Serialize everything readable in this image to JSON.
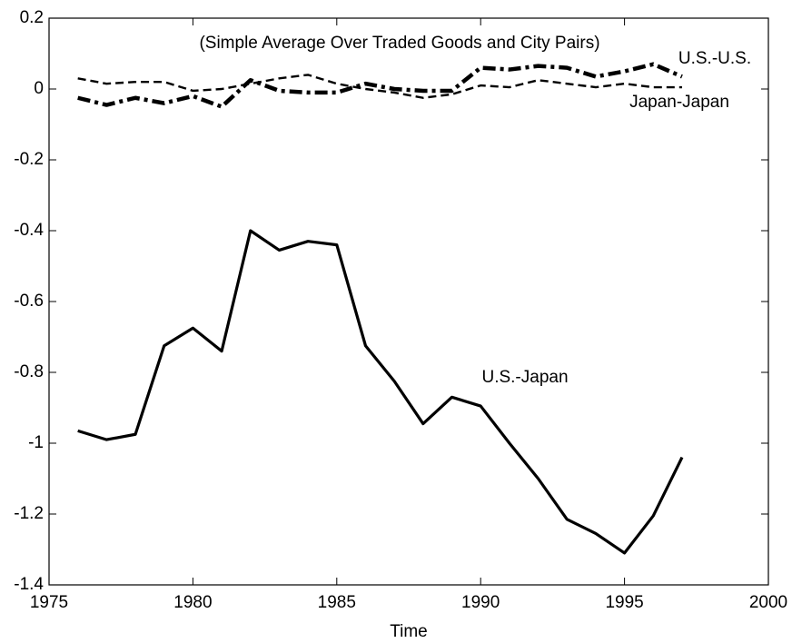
{
  "chart_data": {
    "type": "line",
    "annotation": "(Simple Average Over Traded Goods and City Pairs)",
    "x_label": "Time",
    "x": [
      1976,
      1977,
      1978,
      1979,
      1980,
      1981,
      1982,
      1983,
      1984,
      1985,
      1986,
      1987,
      1988,
      1989,
      1990,
      1991,
      1992,
      1993,
      1994,
      1995,
      1996,
      1997
    ],
    "series": [
      {
        "name": "U.S.-Japan",
        "color": "#000000",
        "style": "solid",
        "values": [
          -0.965,
          -0.99,
          -0.975,
          -0.725,
          -0.675,
          -0.74,
          -0.4,
          -0.455,
          -0.43,
          -0.44,
          -0.725,
          -0.825,
          -0.945,
          -0.87,
          -0.895,
          -1.0,
          -1.1,
          -1.215,
          -1.255,
          -1.31,
          -1.205,
          -1.04
        ]
      },
      {
        "name": "U.S.-U.S.",
        "color": "#000000",
        "style": "dashdot",
        "values": [
          -0.025,
          -0.045,
          -0.025,
          -0.04,
          -0.02,
          -0.05,
          0.025,
          -0.005,
          -0.01,
          -0.01,
          0.015,
          0.0,
          -0.005,
          -0.005,
          0.06,
          0.055,
          0.065,
          0.06,
          0.035,
          0.05,
          0.07,
          0.035
        ]
      },
      {
        "name": "Japan-Japan",
        "color": "#000000",
        "style": "dashed",
        "values": [
          0.03,
          0.015,
          0.02,
          0.02,
          -0.005,
          0.0,
          0.015,
          0.03,
          0.04,
          0.015,
          0.0,
          -0.01,
          -0.025,
          -0.015,
          0.01,
          0.005,
          0.025,
          0.015,
          0.005,
          0.015,
          0.005,
          0.005
        ]
      }
    ],
    "xlim": [
      1975,
      2000
    ],
    "xticks": [
      1975,
      1980,
      1985,
      1990,
      1995,
      2000
    ],
    "ylim": [
      -1.4,
      0.2
    ],
    "yticks": [
      0.2,
      0,
      -0.2,
      -0.4,
      -0.6,
      -0.8,
      -1,
      -1.2,
      -1.4
    ],
    "grid": false
  }
}
